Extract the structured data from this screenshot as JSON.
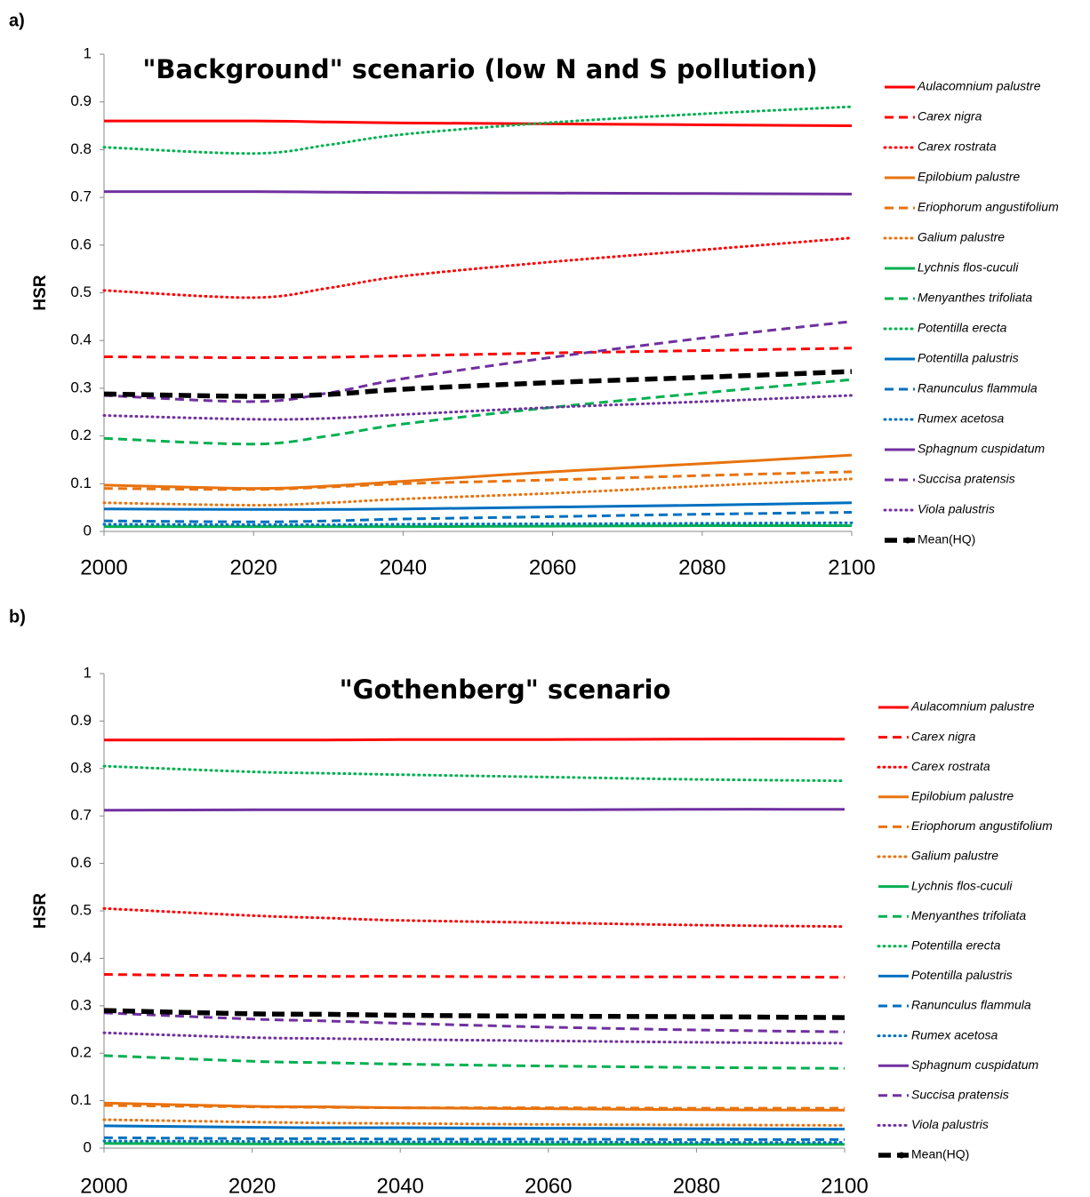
{
  "chart_data": [
    {
      "type": "line",
      "label": "a)",
      "title": "\"Background\" scenario (low N and S pollution)",
      "y_label": "HSR",
      "x": [
        2000,
        2020,
        2030,
        2040,
        2060,
        2080,
        2100
      ],
      "xlim": [
        2000,
        2100
      ],
      "xticks": [
        2000,
        2020,
        2040,
        2060,
        2080,
        2100
      ],
      "ylim": [
        0,
        1
      ],
      "yticks": [
        0,
        0.1,
        0.2,
        0.3,
        0.4,
        0.5,
        0.6,
        0.7,
        0.8,
        0.9,
        1
      ],
      "legend": "right",
      "series": [
        {
          "name": "Aulacomnium palustre",
          "color": "#ff0000",
          "dash": "solid",
          "italic": true,
          "values": [
            0.86,
            0.86,
            0.858,
            0.856,
            0.854,
            0.852,
            0.85
          ]
        },
        {
          "name": "Carex nigra",
          "color": "#ff0000",
          "dash": "dash",
          "italic": true,
          "values": [
            0.366,
            0.364,
            0.365,
            0.368,
            0.374,
            0.379,
            0.384
          ]
        },
        {
          "name": "Carex rostrata",
          "color": "#ff0000",
          "dash": "dot",
          "italic": true,
          "values": [
            0.505,
            0.49,
            0.51,
            0.535,
            0.565,
            0.59,
            0.615
          ]
        },
        {
          "name": "Epilobium palustre",
          "color": "#e8730f",
          "dash": "solid",
          "italic": true,
          "values": [
            0.097,
            0.09,
            0.095,
            0.105,
            0.125,
            0.142,
            0.16
          ]
        },
        {
          "name": "Eriophorum angustifolium",
          "color": "#e8730f",
          "dash": "dash",
          "italic": true,
          "values": [
            0.09,
            0.088,
            0.093,
            0.1,
            0.108,
            0.117,
            0.125
          ]
        },
        {
          "name": "Galium palustre",
          "color": "#e8730f",
          "dash": "dot",
          "italic": true,
          "values": [
            0.06,
            0.055,
            0.06,
            0.068,
            0.08,
            0.095,
            0.11
          ]
        },
        {
          "name": "Lychnis flos-cuculi",
          "color": "#00b050",
          "dash": "solid",
          "italic": true,
          "values": [
            0.01,
            0.01,
            0.01,
            0.01,
            0.011,
            0.012,
            0.012
          ]
        },
        {
          "name": "Menyanthes trifoliata",
          "color": "#00b050",
          "dash": "dash",
          "italic": true,
          "values": [
            0.195,
            0.183,
            0.2,
            0.225,
            0.26,
            0.29,
            0.318
          ]
        },
        {
          "name": "Potentilla erecta",
          "color": "#00b050",
          "dash": "dot",
          "italic": true,
          "values": [
            0.805,
            0.792,
            0.81,
            0.832,
            0.857,
            0.875,
            0.89
          ]
        },
        {
          "name": "Potentilla palustris",
          "color": "#0070c0",
          "dash": "solid",
          "italic": true,
          "values": [
            0.047,
            0.046,
            0.046,
            0.047,
            0.051,
            0.055,
            0.06
          ]
        },
        {
          "name": "Ranunculus flammula",
          "color": "#0070c0",
          "dash": "dash",
          "italic": true,
          "values": [
            0.022,
            0.02,
            0.022,
            0.026,
            0.031,
            0.036,
            0.04
          ]
        },
        {
          "name": "Rumex acetosa",
          "color": "#0070c0",
          "dash": "dot",
          "italic": true,
          "values": [
            0.015,
            0.014,
            0.014,
            0.015,
            0.016,
            0.017,
            0.018
          ]
        },
        {
          "name": "Sphagnum cuspidatum",
          "color": "#7030a0",
          "dash": "solid",
          "italic": true,
          "values": [
            0.712,
            0.712,
            0.711,
            0.71,
            0.709,
            0.708,
            0.707
          ]
        },
        {
          "name": "Succisa pratensis",
          "color": "#7030a0",
          "dash": "dash",
          "italic": true,
          "values": [
            0.285,
            0.272,
            0.29,
            0.32,
            0.365,
            0.405,
            0.44
          ]
        },
        {
          "name": "Viola palustris",
          "color": "#7030a0",
          "dash": "dot",
          "italic": true,
          "values": [
            0.243,
            0.235,
            0.237,
            0.245,
            0.26,
            0.272,
            0.285
          ]
        },
        {
          "name": "Mean(HQ)",
          "color": "#000000",
          "dash": "bold-dash",
          "italic": false,
          "values": [
            0.288,
            0.283,
            0.287,
            0.298,
            0.312,
            0.323,
            0.335
          ]
        }
      ]
    },
    {
      "type": "line",
      "label": "b)",
      "title": "\"Gothenberg\" scenario",
      "y_label": "HSR",
      "x": [
        2000,
        2020,
        2030,
        2040,
        2060,
        2080,
        2100
      ],
      "xlim": [
        2000,
        2100
      ],
      "xticks": [
        2000,
        2020,
        2040,
        2060,
        2080,
        2100
      ],
      "ylim": [
        0,
        1
      ],
      "yticks": [
        0,
        0.1,
        0.2,
        0.3,
        0.4,
        0.5,
        0.6,
        0.7,
        0.8,
        0.9,
        1
      ],
      "legend": "right",
      "series": [
        {
          "name": "Aulacomnium palustre",
          "color": "#ff0000",
          "dash": "solid",
          "italic": true,
          "values": [
            0.86,
            0.86,
            0.86,
            0.861,
            0.861,
            0.862,
            0.862
          ]
        },
        {
          "name": "Carex nigra",
          "color": "#ff0000",
          "dash": "dash",
          "italic": true,
          "values": [
            0.366,
            0.363,
            0.362,
            0.362,
            0.361,
            0.361,
            0.36
          ]
        },
        {
          "name": "Carex rostrata",
          "color": "#ff0000",
          "dash": "dot",
          "italic": true,
          "values": [
            0.505,
            0.49,
            0.485,
            0.48,
            0.475,
            0.47,
            0.467
          ]
        },
        {
          "name": "Epilobium palustre",
          "color": "#e8730f",
          "dash": "solid",
          "italic": true,
          "values": [
            0.095,
            0.088,
            0.087,
            0.085,
            0.083,
            0.081,
            0.08
          ]
        },
        {
          "name": "Eriophorum angustifolium",
          "color": "#e8730f",
          "dash": "dash",
          "italic": true,
          "values": [
            0.09,
            0.087,
            0.086,
            0.085,
            0.085,
            0.084,
            0.084
          ]
        },
        {
          "name": "Galium palustre",
          "color": "#e8730f",
          "dash": "dot",
          "italic": true,
          "values": [
            0.06,
            0.055,
            0.053,
            0.052,
            0.05,
            0.049,
            0.048
          ]
        },
        {
          "name": "Lychnis flos-cuculi",
          "color": "#00b050",
          "dash": "solid",
          "italic": true,
          "values": [
            0.01,
            0.009,
            0.009,
            0.009,
            0.008,
            0.008,
            0.008
          ]
        },
        {
          "name": "Menyanthes trifoliata",
          "color": "#00b050",
          "dash": "dash",
          "italic": true,
          "values": [
            0.195,
            0.183,
            0.18,
            0.177,
            0.173,
            0.17,
            0.168
          ]
        },
        {
          "name": "Potentilla erecta",
          "color": "#00b050",
          "dash": "dot",
          "italic": true,
          "values": [
            0.805,
            0.793,
            0.79,
            0.787,
            0.782,
            0.777,
            0.774
          ]
        },
        {
          "name": "Potentilla palustris",
          "color": "#0070c0",
          "dash": "solid",
          "italic": true,
          "values": [
            0.047,
            0.044,
            0.043,
            0.043,
            0.042,
            0.041,
            0.04
          ]
        },
        {
          "name": "Ranunculus flammula",
          "color": "#0070c0",
          "dash": "dash",
          "italic": true,
          "values": [
            0.022,
            0.02,
            0.02,
            0.019,
            0.019,
            0.018,
            0.018
          ]
        },
        {
          "name": "Rumex acetosa",
          "color": "#0070c0",
          "dash": "dot",
          "italic": true,
          "values": [
            0.015,
            0.014,
            0.013,
            0.013,
            0.013,
            0.012,
            0.012
          ]
        },
        {
          "name": "Sphagnum cuspidatum",
          "color": "#7030a0",
          "dash": "solid",
          "italic": true,
          "values": [
            0.712,
            0.713,
            0.713,
            0.713,
            0.713,
            0.714,
            0.714
          ]
        },
        {
          "name": "Succisa pratensis",
          "color": "#7030a0",
          "dash": "dash",
          "italic": true,
          "values": [
            0.285,
            0.272,
            0.268,
            0.263,
            0.255,
            0.249,
            0.245
          ]
        },
        {
          "name": "Viola palustris",
          "color": "#7030a0",
          "dash": "dot",
          "italic": true,
          "values": [
            0.243,
            0.233,
            0.231,
            0.229,
            0.226,
            0.223,
            0.221
          ]
        },
        {
          "name": "Mean(HQ)",
          "color": "#000000",
          "dash": "bold-dash",
          "italic": false,
          "values": [
            0.29,
            0.283,
            0.282,
            0.28,
            0.278,
            0.277,
            0.275
          ]
        }
      ]
    }
  ]
}
